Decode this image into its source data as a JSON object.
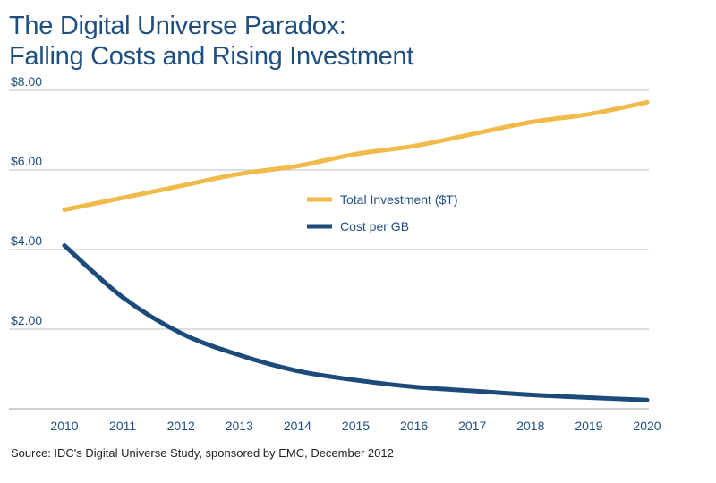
{
  "chart_data": {
    "type": "line",
    "title_lines": [
      "The Digital Universe Paradox:",
      "Falling Costs and Rising Investment"
    ],
    "x": [
      2010,
      2011,
      2012,
      2013,
      2014,
      2015,
      2016,
      2017,
      2018,
      2019,
      2020
    ],
    "x_tick_labels": [
      "2010",
      "2011",
      "2012",
      "2013",
      "2014",
      "2015",
      "2016",
      "2017",
      "2018",
      "2019",
      "2020"
    ],
    "y_tick_labels": [
      "$8.00",
      "$6.00",
      "$4.00",
      "$2.00"
    ],
    "y_tick_values": [
      8,
      6,
      4,
      2
    ],
    "ylim": [
      0,
      8
    ],
    "xlim": [
      2010,
      2020
    ],
    "grid": true,
    "legend_position": "center",
    "series": [
      {
        "name": "Total Investment ($T)",
        "color": "#f0bb4a",
        "values": [
          5.0,
          5.3,
          5.6,
          5.9,
          6.1,
          6.4,
          6.6,
          6.9,
          7.2,
          7.4,
          7.7
        ]
      },
      {
        "name": "Cost per GB",
        "color": "#1c4a7a",
        "values": [
          4.1,
          2.8,
          1.9,
          1.35,
          0.95,
          0.72,
          0.55,
          0.45,
          0.35,
          0.28,
          0.22
        ]
      }
    ],
    "source": "Source: IDC's Digital Universe Study, sponsored by EMC, December 2012"
  }
}
